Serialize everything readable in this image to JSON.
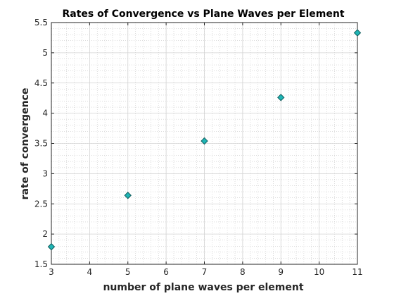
{
  "chart_data": {
    "type": "scatter",
    "title": "Rates of Convergence vs Plane Waves per Element",
    "xlabel": "number of plane waves per element",
    "ylabel": "rate of convergence",
    "xlim": [
      3,
      11
    ],
    "ylim": [
      1.5,
      5.5
    ],
    "xticks": [
      "3",
      "4",
      "5",
      "6",
      "7",
      "8",
      "9",
      "10",
      "11"
    ],
    "yticks": [
      "1.5",
      "2",
      "2.5",
      "3",
      "3.5",
      "4",
      "4.5",
      "5",
      "5.5"
    ],
    "grid": true,
    "minor_grid": true,
    "marker": "diamond",
    "marker_color": "#1fb5b5",
    "series": [
      {
        "x": [
          3,
          5,
          7,
          9,
          11
        ],
        "y": [
          1.79,
          2.64,
          3.54,
          4.26,
          5.33
        ]
      }
    ]
  }
}
